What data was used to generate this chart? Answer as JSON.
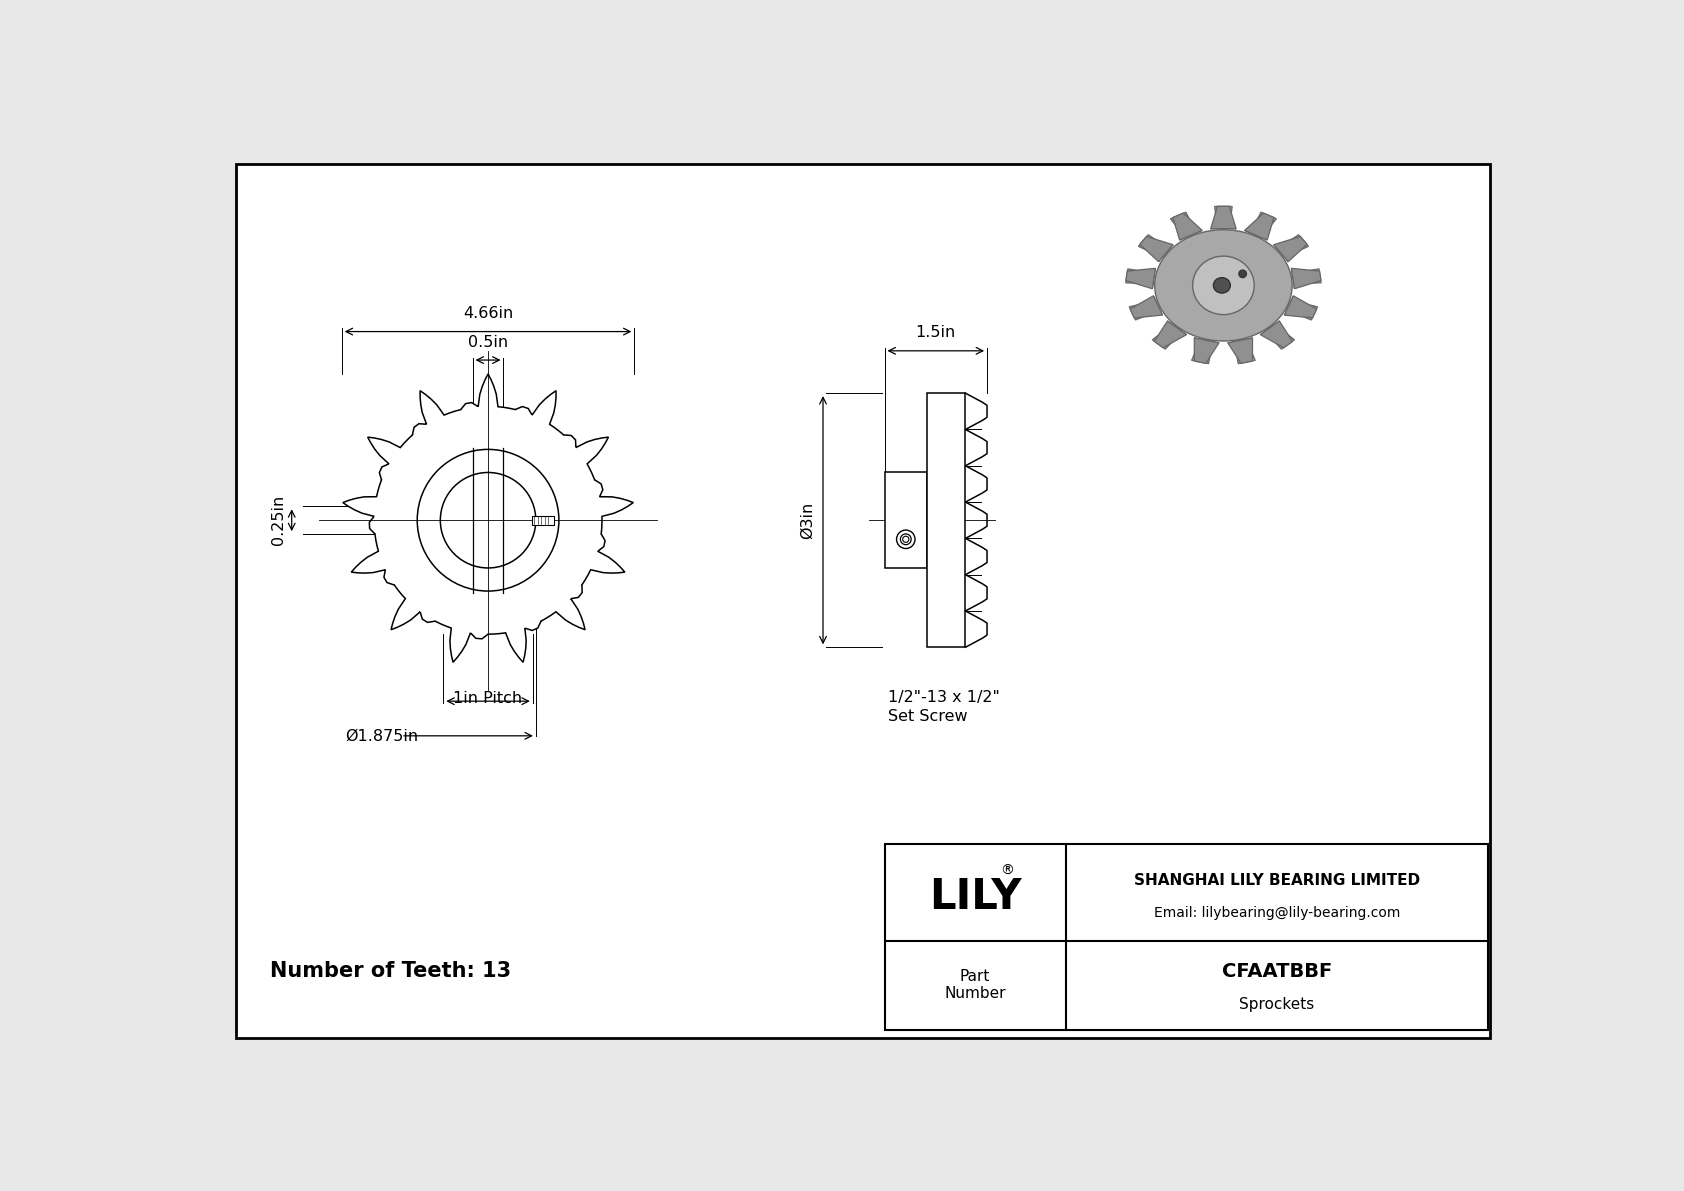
{
  "bg_color": "#e8e8e8",
  "drawing_bg": "#ffffff",
  "border_color": "#000000",
  "title": "CFAATBBF",
  "subtitle": "Sprockets",
  "company": "SHANGHAI LILY BEARING LIMITED",
  "email": "Email: lilybearing@lily-bearing.com",
  "brand": "LILY",
  "part_label": "Part\nNumber",
  "teeth_label": "Number of Teeth: 13",
  "dim_4_66": "4.66in",
  "dim_0_5": "0.5in",
  "dim_0_25": "0.25in",
  "dim_1in": "1in Pitch",
  "dim_bore": "Ø1.875in",
  "dim_1_5": "1.5in",
  "dim_3": "Ø3in",
  "dim_set_screw": "1/2\"-13 x 1/2\"\nSet Screw",
  "n_teeth": 13
}
